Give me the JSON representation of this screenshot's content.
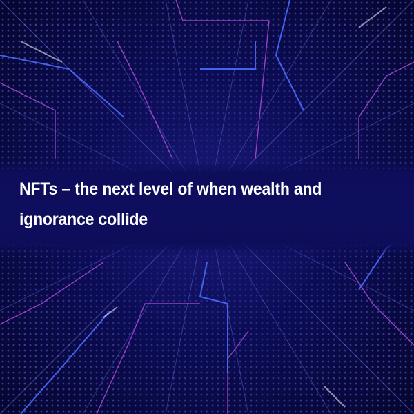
{
  "headline": {
    "text": "NFTs – the next level of when wealth and ignorance collide"
  },
  "colors": {
    "background": "#0a0a3c",
    "band": "#0e0e5e",
    "dots": "#6f7cff",
    "lines_purple": "#b04bd8",
    "lines_blue": "#4a6bff",
    "text": "#ffffff"
  }
}
